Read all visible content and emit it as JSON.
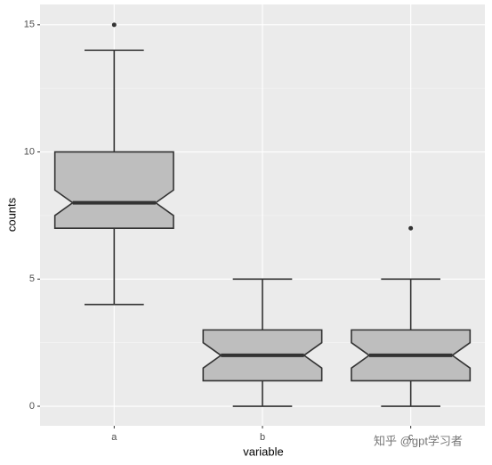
{
  "chart_data": {
    "type": "boxplot",
    "categories": [
      "a",
      "b",
      "c"
    ],
    "whisker_low": [
      4,
      0,
      0
    ],
    "q1": [
      7,
      1,
      1
    ],
    "notch_low": [
      7.5,
      1.5,
      1.5
    ],
    "median": [
      8,
      2,
      2
    ],
    "notch_high": [
      8.5,
      2.5,
      2.5
    ],
    "q3": [
      10,
      3,
      3
    ],
    "whisker_high": [
      14,
      5,
      5
    ],
    "outliers": [
      [
        15
      ],
      [],
      [
        7
      ]
    ],
    "fill": "#bebebe",
    "xlabel": "variable",
    "ylabel": "counts",
    "ylim": [
      -0.77,
      15.8
    ],
    "yticks": [
      0,
      5,
      10,
      15
    ],
    "yminor": [
      2.5,
      7.5,
      12.5
    ],
    "grid": true,
    "watermark": "知乎 @gpt学习者"
  }
}
